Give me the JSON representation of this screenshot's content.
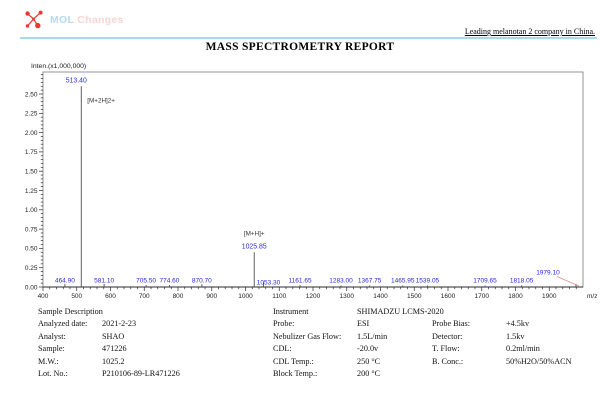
{
  "header": {
    "logo": {
      "brand_primary": "MOL",
      "brand_secondary": "Changes",
      "icon": "molecule-network-icon"
    },
    "tagline": "Leading melanotan 2 company in China.",
    "colors": {
      "accent_line": "#a6d9ec",
      "logo_red": "#e8392f",
      "logo_blue": "#b5d9f5",
      "logo_pink": "#f6d6d2"
    }
  },
  "title": "MASS SPECTROMETRY REPORT",
  "chart_data": {
    "type": "bar",
    "title": "",
    "ylabel": "Inten.(x1,000,000)",
    "xlabel": "m/z",
    "xlim": [
      400,
      2000
    ],
    "ylim": [
      0,
      2.785
    ],
    "x_tick_step": 100,
    "x_minor_step": 20,
    "x_tick_max": 1900,
    "y_tick_step": 0.25,
    "y_minor_step": 0.05,
    "y_tick_max": 2.5,
    "grid": false,
    "legend": false,
    "colors": {
      "peak": "#4d4d4d",
      "label": "#2a2ad0",
      "leader": "#e09090",
      "frame": "#7a7a7a",
      "axis": "#2a2a2a"
    },
    "peaks": [
      {
        "mz": 464.9,
        "intensity": 0.04,
        "label": "464.90"
      },
      {
        "mz": 513.4,
        "intensity": 2.6,
        "label": "513.40",
        "label_pos": "top",
        "label_offset": [
          -5,
          0
        ],
        "annotation": "[M+2H]2+",
        "annotation_side": "right"
      },
      {
        "mz": 581.1,
        "intensity": 0.04,
        "label": "581.10"
      },
      {
        "mz": 705.5,
        "intensity": 0.025,
        "label": "705.50"
      },
      {
        "mz": 774.6,
        "intensity": 0.025,
        "label": "774.60"
      },
      {
        "mz": 870.7,
        "intensity": 0.035,
        "label": "870.70"
      },
      {
        "mz": 1025.85,
        "intensity": 0.45,
        "label": "1025.85",
        "label_pos": "top",
        "annotation": "[M+H]+",
        "annotation_side": "above"
      },
      {
        "mz": 1053.3,
        "intensity": 0.06,
        "label": "1053.30",
        "label_offset": [
          5,
          2
        ]
      },
      {
        "mz": 1161.65,
        "intensity": 0.025,
        "label": "1161.65"
      },
      {
        "mz": 1283.0,
        "intensity": 0.02,
        "label": "1283.00"
      },
      {
        "mz": 1367.75,
        "intensity": 0.02,
        "label": "1367.75"
      },
      {
        "mz": 1465.95,
        "intensity": 0.02,
        "label": "1465.95"
      },
      {
        "mz": 1539.05,
        "intensity": 0.02,
        "label": "1539.05"
      },
      {
        "mz": 1709.65,
        "intensity": 0.02,
        "label": "1709.65"
      },
      {
        "mz": 1818.05,
        "intensity": 0.02,
        "label": "1818.05"
      },
      {
        "mz": 1979.1,
        "intensity": 0.04,
        "label": "1979.10",
        "label_offset": [
          -28,
          -8
        ],
        "leader": true
      }
    ]
  },
  "sample_table": {
    "groups": [
      {
        "rows": [
          [
            "Sample Description",
            ""
          ],
          [
            "Analyzed date:",
            "2021-2-23"
          ],
          [
            "Analyst:",
            "SHAO"
          ],
          [
            "Sample:",
            "471226"
          ],
          [
            "M.W.:",
            "1025.2"
          ],
          [
            "Lot. No.:",
            "P210106-89-LR471226"
          ]
        ]
      },
      {
        "rows": [
          [
            "Instrument",
            "SHIMADZU LCMS-2020"
          ],
          [
            "Probe:",
            "ESI"
          ],
          [
            "Nebulizer Gas Flow:",
            "1.5L/min"
          ],
          [
            "CDL:",
            "-20.0v"
          ],
          [
            "CDL Temp.:",
            "250 °C"
          ],
          [
            "Block Temp.:",
            "200 °C"
          ]
        ]
      },
      {
        "rows": [
          [
            "",
            ""
          ],
          [
            "Probe Bias:",
            "+4.5kv"
          ],
          [
            "Detector:",
            "1.5kv"
          ],
          [
            "T. Flow:",
            "0.2ml/min"
          ],
          [
            "B. Conc.:",
            "50%H2O/50%ACN"
          ]
        ]
      }
    ]
  }
}
